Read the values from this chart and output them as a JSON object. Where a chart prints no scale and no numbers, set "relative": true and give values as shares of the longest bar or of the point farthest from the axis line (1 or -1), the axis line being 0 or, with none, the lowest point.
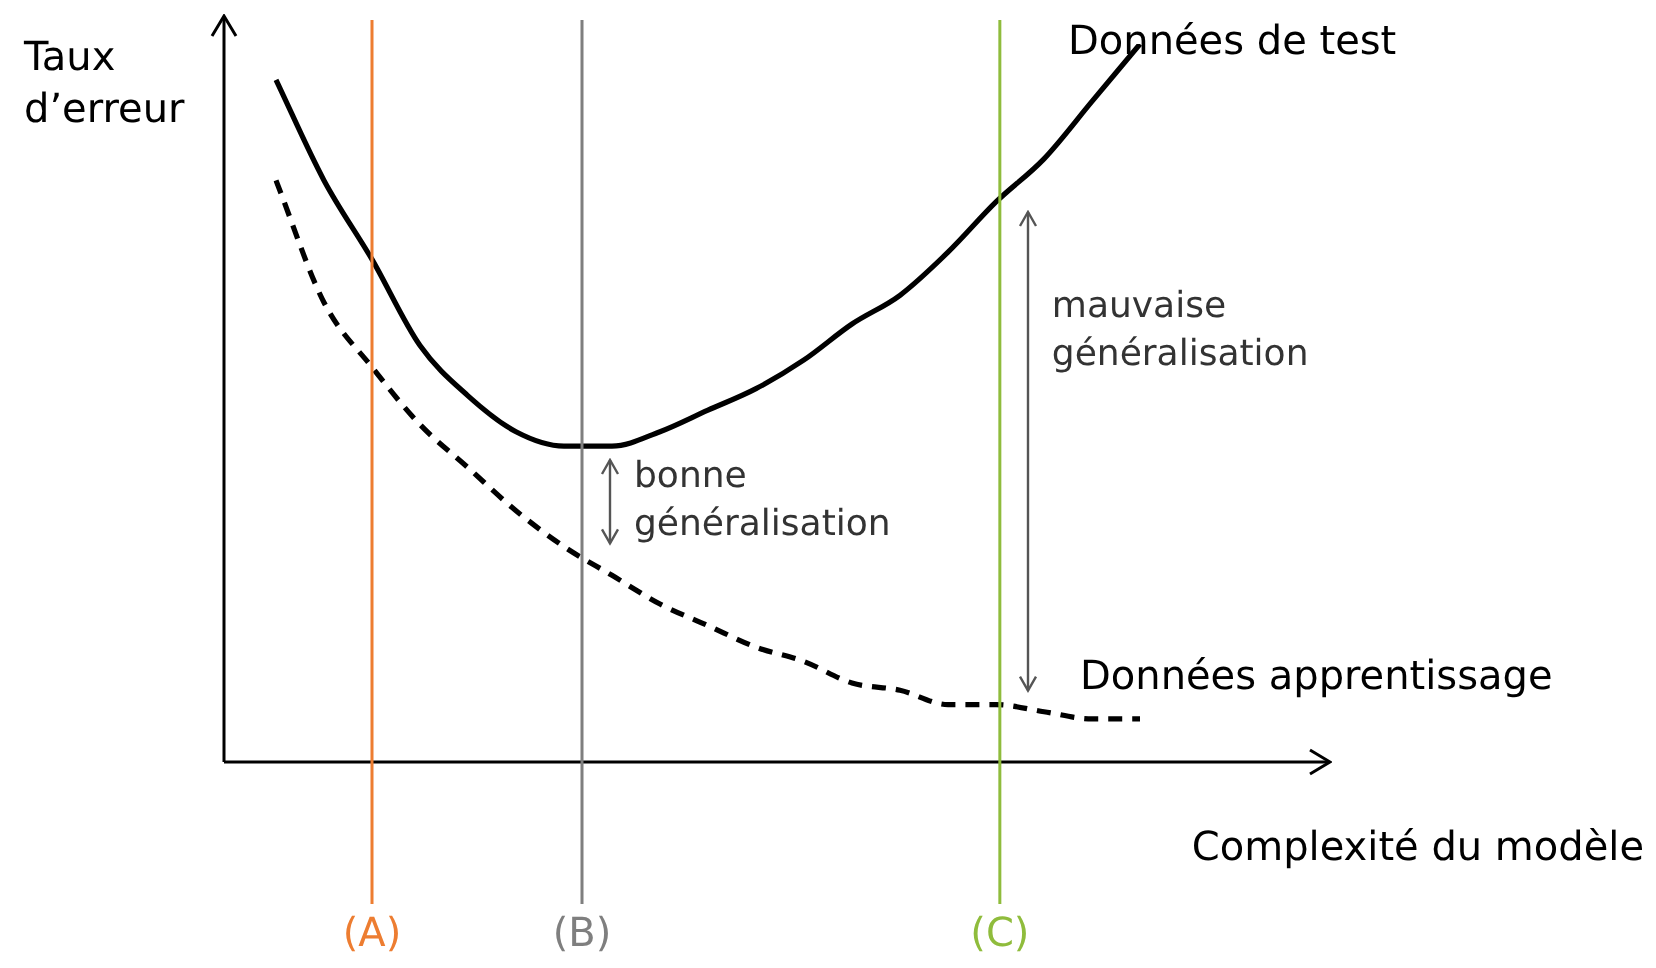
{
  "chart_data": {
    "type": "line",
    "relative": true,
    "xlabel": "Complexité du modèle",
    "ylabel": "Taux d’erreur",
    "tick_labels": false,
    "legend": false,
    "categories": [
      null,
      null,
      null,
      null,
      null,
      null,
      null,
      null,
      null,
      null,
      null,
      null,
      null,
      null,
      null,
      null,
      null,
      null,
      null
    ],
    "series": [
      {
        "name": "Données de test",
        "color": "#000000",
        "line_style": "solid",
        "values": [
          0.95,
          0.81,
          0.7,
          0.58,
          0.51,
          0.46,
          0.44,
          0.44,
          0.46,
          0.49,
          0.52,
          0.56,
          0.61,
          0.65,
          0.71,
          0.78,
          0.84,
          0.92,
          1
        ]
      },
      {
        "name": "Données apprentissage",
        "color": "#000000",
        "line_style": "dashed",
        "values": [
          0.81,
          0.64,
          0.55,
          0.47,
          0.41,
          0.35,
          0.3,
          0.26,
          0.22,
          0.19,
          0.16,
          0.14,
          0.11,
          0.1,
          0.08,
          0.08,
          0.07,
          0.06,
          0.06
        ]
      }
    ],
    "annotations": [
      "(A)",
      "(B)",
      "(C)",
      "bonne généralisation",
      "mauvaise généralisation"
    ]
  }
}
